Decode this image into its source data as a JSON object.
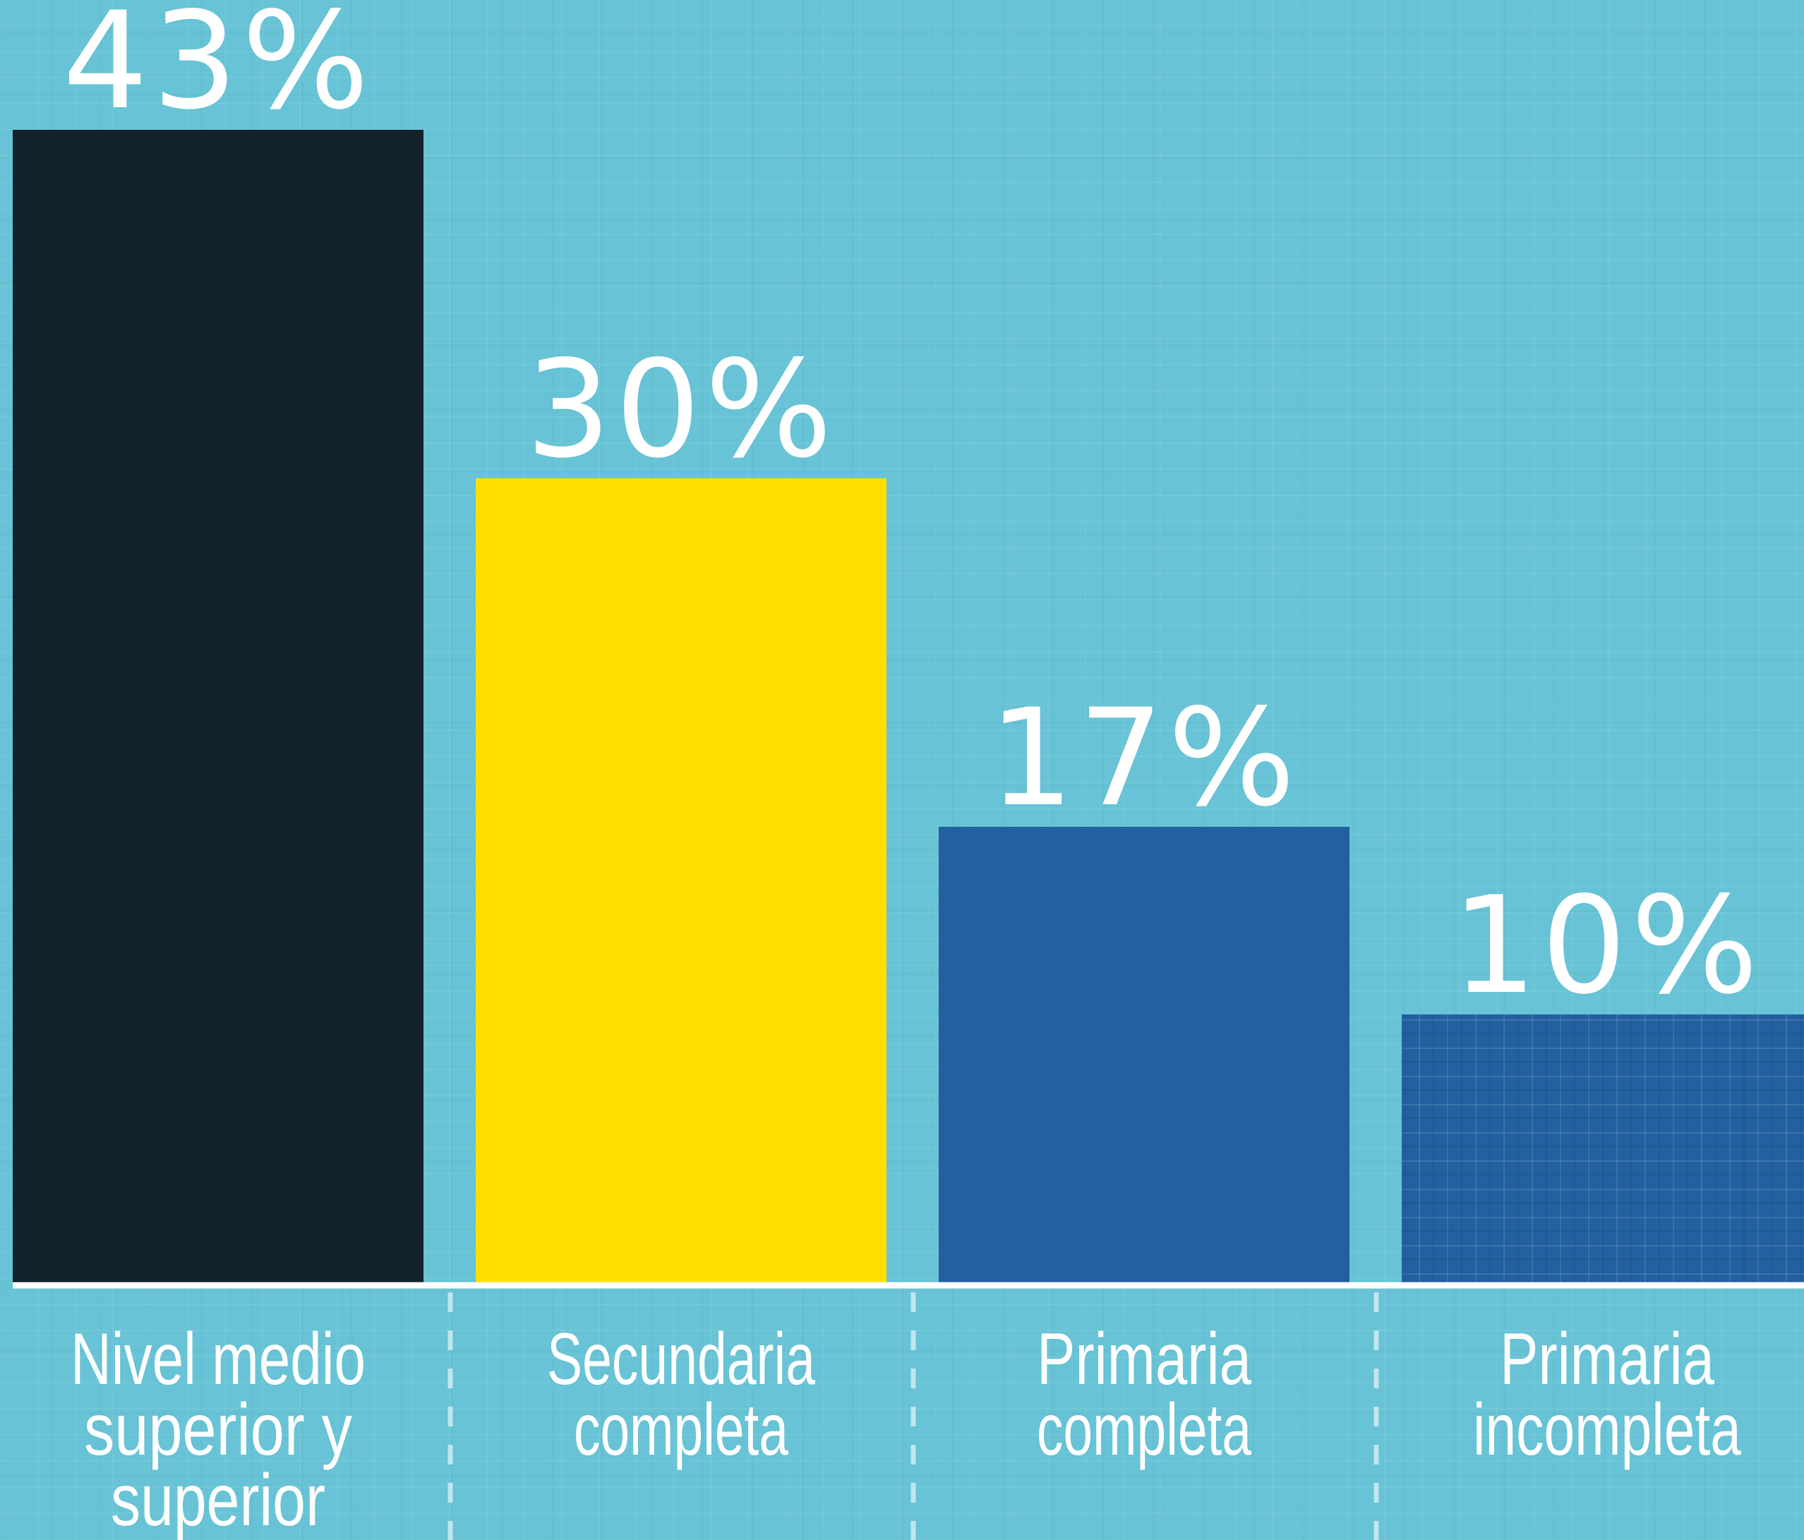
{
  "chart_data": {
    "type": "bar",
    "categories": [
      [
        "Nivel medio",
        "superior y",
        "superior"
      ],
      [
        "Secundaria",
        "completa"
      ],
      [
        "Primaria",
        "completa"
      ],
      [
        "Primaria",
        "incompleta"
      ]
    ],
    "values": [
      43,
      30,
      17,
      10
    ],
    "value_labels": [
      "43%",
      "30%",
      "17%",
      "10%"
    ],
    "bar_colors": [
      "#13212a",
      "#ffdf00",
      "#22609f",
      "#22609f"
    ],
    "ylim": [
      0,
      45
    ],
    "grid": false,
    "legend": "none"
  },
  "colors": {
    "background": "#67c3d5",
    "axis": "#ffffff",
    "separator": "#bfe6ee",
    "text": "#ffffff"
  }
}
